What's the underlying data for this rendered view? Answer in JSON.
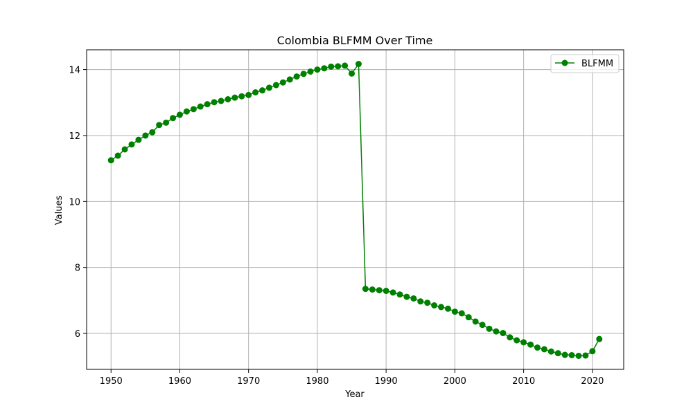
{
  "chart_data": {
    "type": "line",
    "title": "Colombia BLFMM Over Time",
    "xlabel": "Year",
    "ylabel": "Values",
    "xlim": [
      1946.45,
      2024.55
    ],
    "ylim": [
      4.91,
      14.6
    ],
    "xticks": [
      1950,
      1960,
      1970,
      1980,
      1990,
      2000,
      2010,
      2020
    ],
    "yticks": [
      6,
      8,
      10,
      12,
      14
    ],
    "grid": true,
    "legend_position": "top-right",
    "series": [
      {
        "name": "BLFMM",
        "color": "#008000",
        "marker": "circle",
        "x": [
          1950,
          1951,
          1952,
          1953,
          1954,
          1955,
          1956,
          1957,
          1958,
          1959,
          1960,
          1961,
          1962,
          1963,
          1964,
          1965,
          1966,
          1967,
          1968,
          1969,
          1970,
          1971,
          1972,
          1973,
          1974,
          1975,
          1976,
          1977,
          1978,
          1979,
          1980,
          1981,
          1982,
          1983,
          1984,
          1985,
          1986,
          1987,
          1988,
          1989,
          1990,
          1991,
          1992,
          1993,
          1994,
          1995,
          1996,
          1997,
          1998,
          1999,
          2000,
          2001,
          2002,
          2003,
          2004,
          2005,
          2006,
          2007,
          2008,
          2009,
          2010,
          2011,
          2012,
          2013,
          2014,
          2015,
          2016,
          2017,
          2018,
          2019,
          2020,
          2021
        ],
        "values": [
          11.25,
          11.39,
          11.58,
          11.73,
          11.87,
          12.0,
          12.1,
          12.32,
          12.39,
          12.53,
          12.63,
          12.73,
          12.8,
          12.88,
          12.95,
          13.01,
          13.05,
          13.1,
          13.15,
          13.19,
          13.23,
          13.31,
          13.37,
          13.45,
          13.53,
          13.61,
          13.7,
          13.79,
          13.87,
          13.94,
          14.0,
          14.04,
          14.09,
          14.1,
          14.12,
          13.88,
          14.17,
          7.35,
          7.33,
          7.31,
          7.29,
          7.24,
          7.18,
          7.11,
          7.06,
          6.97,
          6.93,
          6.85,
          6.8,
          6.75,
          6.66,
          6.61,
          6.49,
          6.36,
          6.26,
          6.14,
          6.06,
          6.01,
          5.88,
          5.79,
          5.73,
          5.66,
          5.57,
          5.52,
          5.45,
          5.4,
          5.35,
          5.34,
          5.32,
          5.33,
          5.46,
          5.83
        ]
      }
    ]
  },
  "colors": {
    "grid": "#b0b0b0",
    "axes": "#000000",
    "legend_border": "#cccccc"
  }
}
